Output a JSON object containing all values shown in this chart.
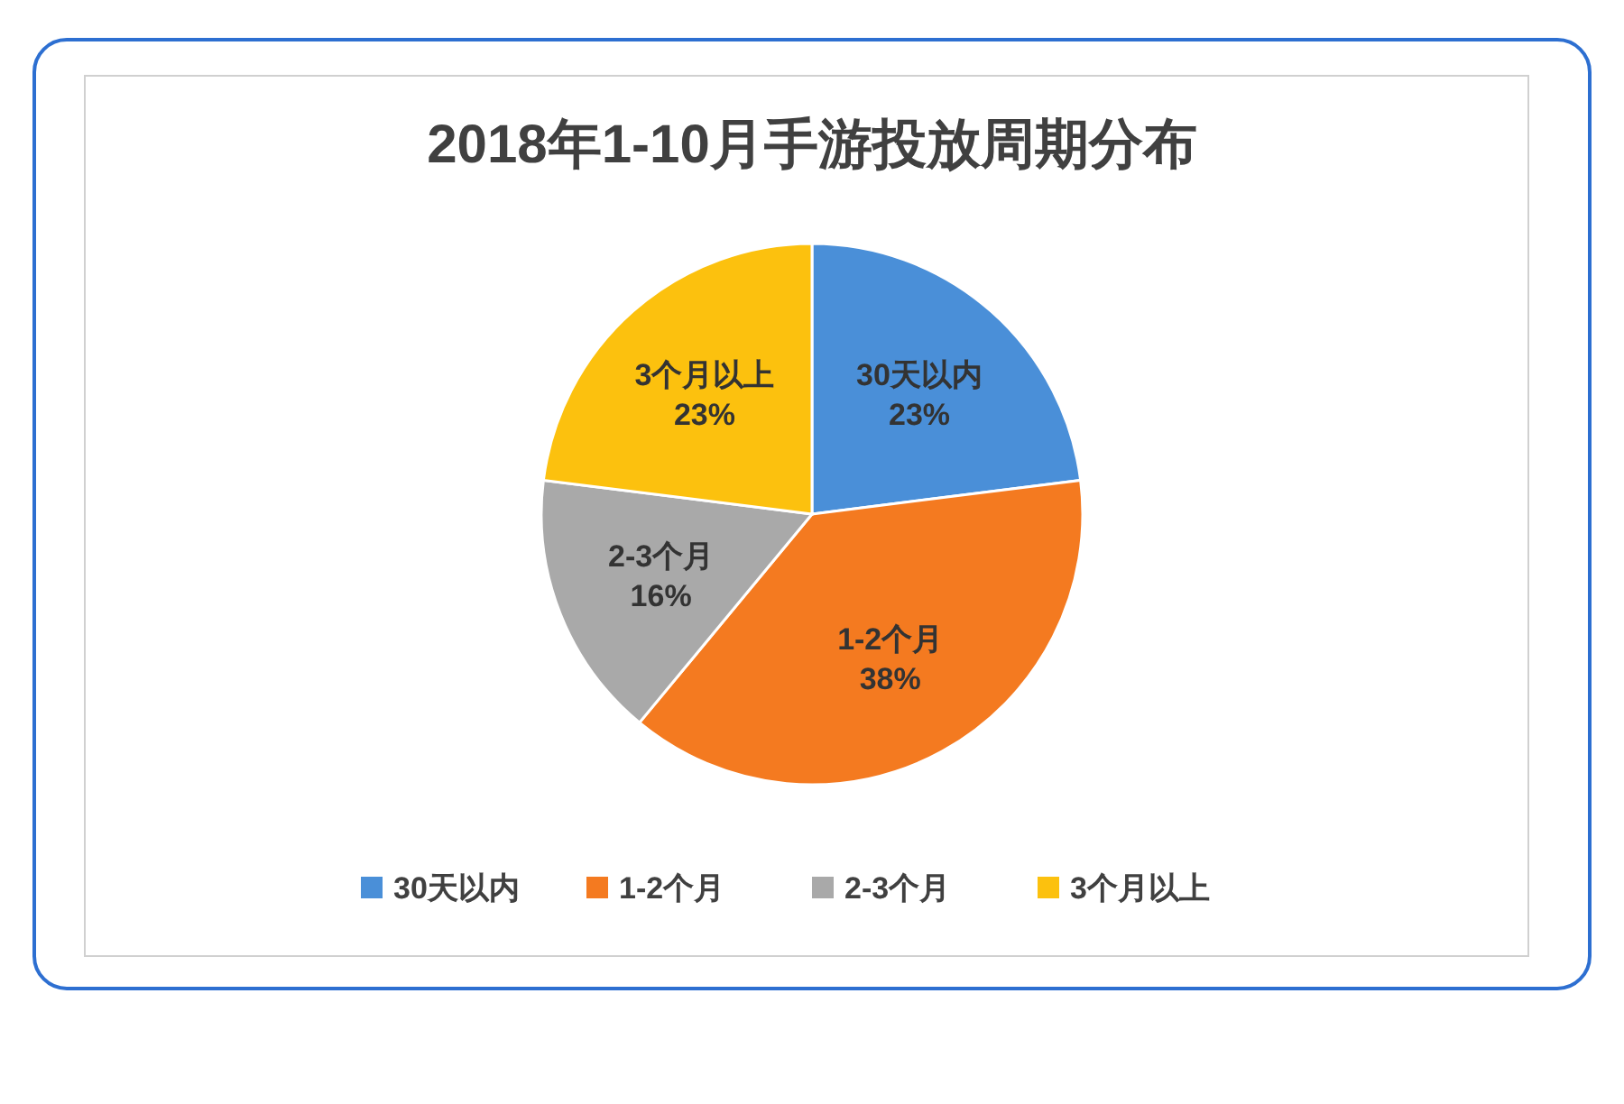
{
  "chart_data": {
    "type": "pie",
    "title": "2018年1-10月手游投放周期分布",
    "categories": [
      "30天以内",
      "1-2个月",
      "2-3个月",
      "3个月以上"
    ],
    "values": [
      23,
      38,
      16,
      23
    ],
    "colors": [
      "#4a8fd8",
      "#f47a20",
      "#a9a9a9",
      "#fcc10e"
    ],
    "value_labels": [
      "23%",
      "38%",
      "16%",
      "23%"
    ],
    "legend": "bottom"
  }
}
